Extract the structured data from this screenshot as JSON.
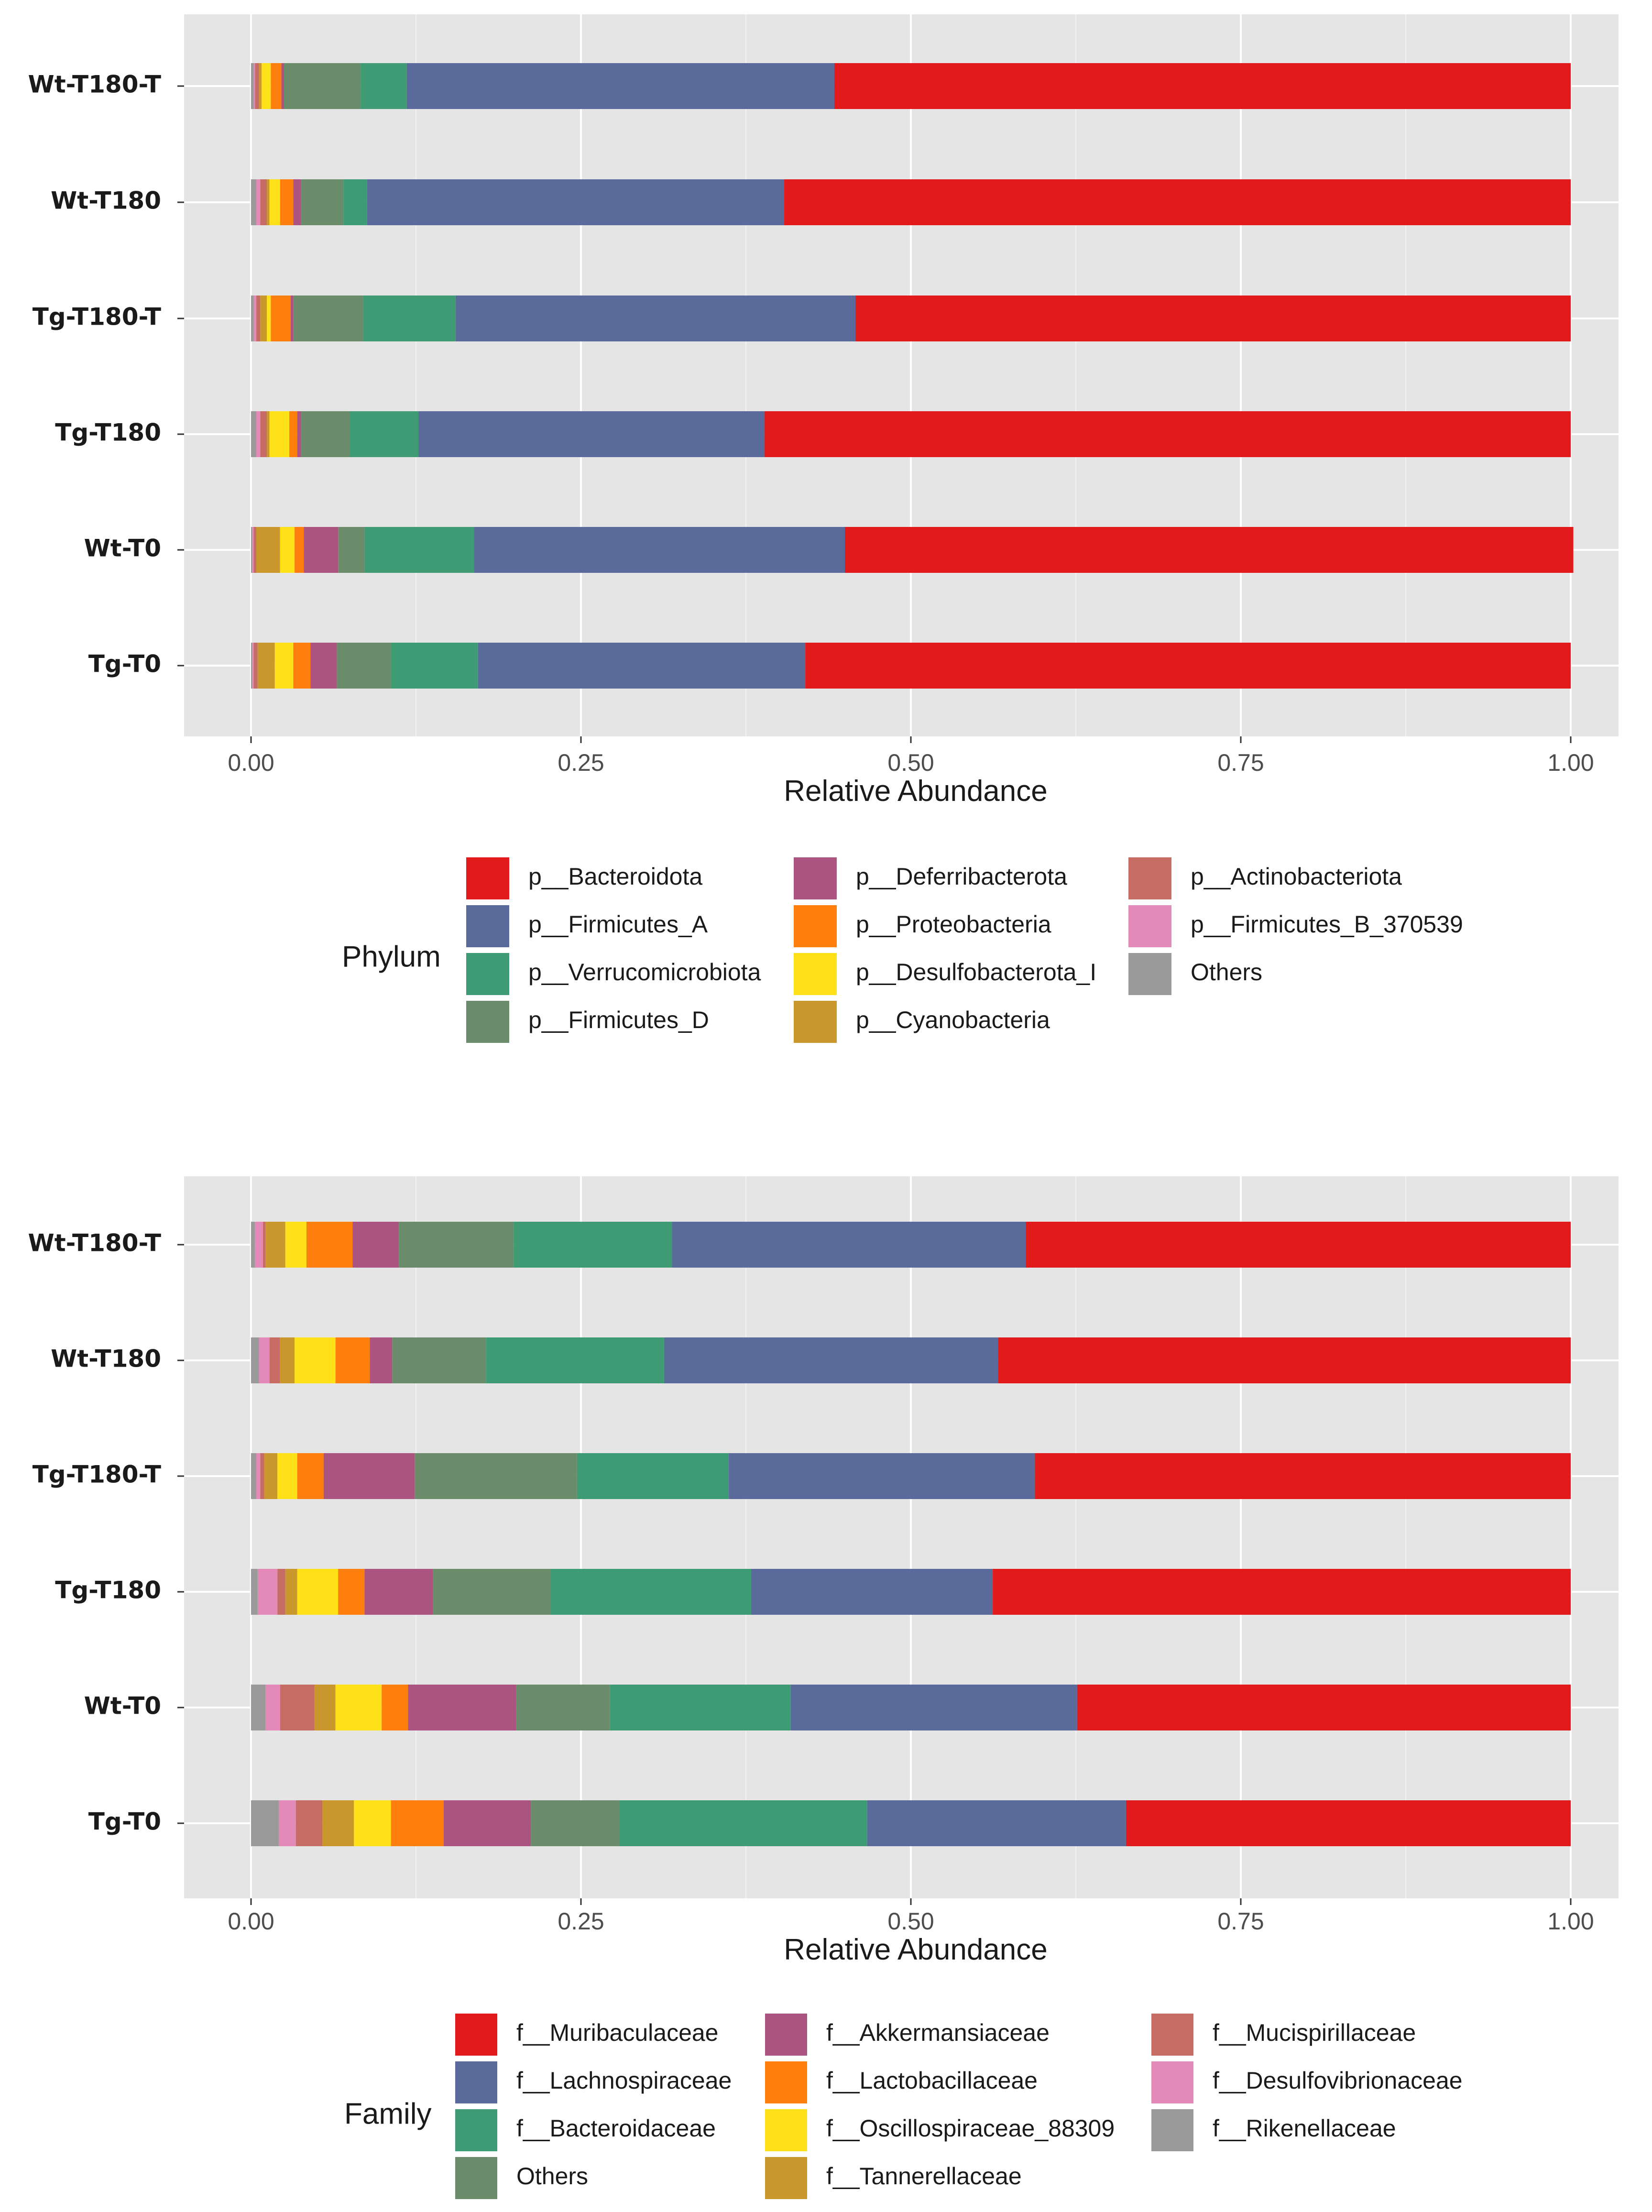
{
  "chart_data": [
    {
      "type": "bar",
      "orientation": "horizontal",
      "stacked": true,
      "title": "",
      "xlabel": "Relative Abundance",
      "ylabel": "",
      "xlim": [
        0,
        1
      ],
      "xticks": [
        0,
        0.25,
        0.5,
        0.75,
        1
      ],
      "xtick_labels": [
        "0.00",
        "0.25",
        "0.50",
        "0.75",
        "1.00"
      ],
      "grid": true,
      "legend_title": "Phylum",
      "legend_position": "bottom",
      "categories": [
        "Wt-T180-T",
        "Wt-T180",
        "Tg-T180-T",
        "Tg-T180",
        "Wt-T0",
        "Tg-T0"
      ],
      "stack_order": [
        "Others",
        "p__Firmicutes_B_370539",
        "p__Actinobacteriota",
        "p__Cyanobacteria",
        "p__Desulfobacterota_I",
        "p__Proteobacteria",
        "p__Deferribacterota",
        "p__Firmicutes_D",
        "p__Verrucomicrobiota",
        "p__Firmicutes_A",
        "p__Bacteroidota"
      ],
      "series": [
        {
          "name": "p__Bacteroidota",
          "color": "#E31A1C",
          "values": [
            0.558,
            0.596,
            0.542,
            0.611,
            0.552,
            0.58
          ]
        },
        {
          "name": "p__Firmicutes_A",
          "color": "#5A6A9A",
          "values": [
            0.324,
            0.316,
            0.303,
            0.262,
            0.281,
            0.248
          ]
        },
        {
          "name": "p__Verrucomicrobiota",
          "color": "#3F9B74",
          "values": [
            0.035,
            0.018,
            0.07,
            0.052,
            0.083,
            0.066
          ]
        },
        {
          "name": "p__Firmicutes_D",
          "color": "#6B8C6B",
          "values": [
            0.058,
            0.032,
            0.053,
            0.037,
            0.02,
            0.041
          ]
        },
        {
          "name": "p__Deferribacterota",
          "color": "#AB5480",
          "values": [
            0.002,
            0.006,
            0.002,
            0.003,
            0.026,
            0.02
          ]
        },
        {
          "name": "p__Proteobacteria",
          "color": "#FF7F0E",
          "values": [
            0.008,
            0.01,
            0.015,
            0.006,
            0.007,
            0.013
          ]
        },
        {
          "name": "p__Desulfobacterota_I",
          "color": "#FFE119",
          "values": [
            0.007,
            0.008,
            0.003,
            0.015,
            0.011,
            0.014
          ]
        },
        {
          "name": "p__Cyanobacteria",
          "color": "#C9972C",
          "values": [
            0.002,
            0.002,
            0.005,
            0.002,
            0.018,
            0.013
          ]
        },
        {
          "name": "p__Actinobacteriota",
          "color": "#C76B65",
          "values": [
            0.003,
            0.005,
            0.003,
            0.005,
            0.002,
            0.003
          ]
        },
        {
          "name": "p__Firmicutes_B_370539",
          "color": "#E48AB8",
          "values": [
            0.001,
            0.003,
            0.002,
            0.003,
            0.001,
            0.001
          ]
        },
        {
          "name": "Others",
          "color": "#9A9A9A",
          "values": [
            0.002,
            0.004,
            0.002,
            0.004,
            0.001,
            0.001
          ]
        }
      ],
      "legend": [
        [
          "p__Bacteroidota",
          "p__Firmicutes_A",
          "p__Verrucomicrobiota",
          "p__Firmicutes_D"
        ],
        [
          "p__Deferribacterota",
          "p__Proteobacteria",
          "p__Desulfobacterota_I",
          "p__Cyanobacteria"
        ],
        [
          "p__Actinobacteriota",
          "p__Firmicutes_B_370539",
          "Others"
        ]
      ]
    },
    {
      "type": "bar",
      "orientation": "horizontal",
      "stacked": true,
      "title": "",
      "xlabel": "Relative Abundance",
      "ylabel": "",
      "xlim": [
        0,
        1
      ],
      "xticks": [
        0,
        0.25,
        0.5,
        0.75,
        1
      ],
      "xtick_labels": [
        "0.00",
        "0.25",
        "0.50",
        "0.75",
        "1.00"
      ],
      "grid": true,
      "legend_title": "Family",
      "legend_position": "bottom",
      "categories": [
        "Wt-T180-T",
        "Wt-T180",
        "Tg-T180-T",
        "Tg-T180",
        "Wt-T0",
        "Tg-T0"
      ],
      "stack_order": [
        "f__Rikenellaceae",
        "f__Desulfovibrionaceae",
        "f__Mucispirillaceae",
        "f__Tannerellaceae",
        "f__Oscillospiraceae_88309",
        "f__Lactobacillaceae",
        "f__Akkermansiaceae",
        "Others",
        "f__Bacteroidaceae",
        "f__Lachnospiraceae",
        "f__Muribaculaceae"
      ],
      "series": [
        {
          "name": "f__Muribaculaceae",
          "color": "#E31A1C",
          "values": [
            0.413,
            0.434,
            0.406,
            0.438,
            0.374,
            0.337
          ]
        },
        {
          "name": "f__Lachnospiraceae",
          "color": "#5A6A9A",
          "values": [
            0.268,
            0.253,
            0.232,
            0.183,
            0.217,
            0.196
          ]
        },
        {
          "name": "f__Bacteroidaceae",
          "color": "#3F9B74",
          "values": [
            0.12,
            0.135,
            0.115,
            0.152,
            0.137,
            0.188
          ]
        },
        {
          "name": "Others",
          "color": "#6B8C6B",
          "values": [
            0.087,
            0.071,
            0.123,
            0.089,
            0.071,
            0.067
          ]
        },
        {
          "name": "f__Akkermansiaceae",
          "color": "#AB5480",
          "values": [
            0.035,
            0.017,
            0.069,
            0.052,
            0.082,
            0.066
          ]
        },
        {
          "name": "f__Lactobacillaceae",
          "color": "#FF7F0E",
          "values": [
            0.035,
            0.026,
            0.02,
            0.02,
            0.02,
            0.04
          ]
        },
        {
          "name": "f__Oscillospiraceae_88309",
          "color": "#FFE119",
          "values": [
            0.016,
            0.031,
            0.015,
            0.031,
            0.035,
            0.028
          ]
        },
        {
          "name": "f__Tannerellaceae",
          "color": "#C9972C",
          "values": [
            0.015,
            0.011,
            0.01,
            0.009,
            0.016,
            0.024
          ]
        },
        {
          "name": "f__Mucispirillaceae",
          "color": "#C76B65",
          "values": [
            0.002,
            0.008,
            0.003,
            0.006,
            0.026,
            0.02
          ]
        },
        {
          "name": "f__Desulfovibrionaceae",
          "color": "#E48AB8",
          "values": [
            0.006,
            0.008,
            0.003,
            0.015,
            0.011,
            0.013
          ]
        },
        {
          "name": "f__Rikenellaceae",
          "color": "#9A9A9A",
          "values": [
            0.003,
            0.006,
            0.004,
            0.005,
            0.011,
            0.021
          ]
        }
      ],
      "legend": [
        [
          "f__Muribaculaceae",
          "f__Lachnospiraceae",
          "f__Bacteroidaceae",
          "Others"
        ],
        [
          "f__Akkermansiaceae",
          "f__Lactobacillaceae",
          "f__Oscillospiraceae_88309",
          "f__Tannerellaceae"
        ],
        [
          "f__Mucispirillaceae",
          "f__Desulfovibrionaceae",
          "f__Rikenellaceae"
        ]
      ]
    }
  ]
}
